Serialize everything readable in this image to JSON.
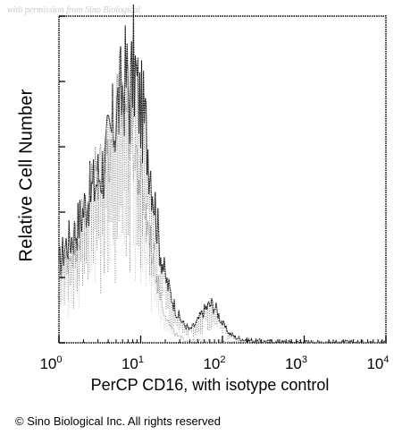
{
  "watermark": "with permission from Sino Biological",
  "copyright": "© Sino Biological Inc. All rights reserved",
  "chart_data": {
    "type": "area",
    "title": "",
    "xlabel": "PerCP CD16, with isotype control",
    "ylabel": "Relative Cell Number",
    "xscale": "log",
    "xlim": [
      1,
      10000
    ],
    "ylim": [
      0,
      100
    ],
    "grid": false,
    "x_ticks": [
      {
        "base": "10",
        "exp": "0",
        "value": 1
      },
      {
        "base": "10",
        "exp": "1",
        "value": 10
      },
      {
        "base": "10",
        "exp": "2",
        "value": 100
      },
      {
        "base": "10",
        "exp": "3",
        "value": 1000
      },
      {
        "base": "10",
        "exp": "4",
        "value": 10000
      }
    ],
    "series": [
      {
        "color": "#1a1a1a",
        "x": [
          1,
          1.2,
          1.5,
          1.8,
          2.2,
          2.6,
          3.1,
          3.6,
          4.2,
          5,
          5.8,
          6.6,
          7.4,
          8.2,
          9,
          10,
          11.5,
          13,
          15,
          17,
          20,
          24,
          28,
          33,
          40,
          48,
          56,
          65,
          75,
          85,
          100,
          120,
          150,
          200,
          300,
          500,
          1000,
          3000,
          10000
        ],
        "y": [
          24,
          30,
          33,
          38,
          44,
          47,
          52,
          55,
          62,
          70,
          76,
          82,
          75,
          86,
          78,
          72,
          66,
          56,
          42,
          30,
          20,
          14,
          9,
          6,
          4,
          6,
          9,
          11,
          12,
          10,
          6,
          3,
          1.5,
          0.8,
          0.4,
          0.2,
          0.1,
          0.05,
          0
        ]
      },
      {
        "color": "#7a7a7a",
        "x": [
          1,
          1.3,
          1.7,
          2.1,
          2.6,
          3.2,
          4,
          5,
          6,
          7,
          8,
          9,
          10,
          11.5,
          13,
          15,
          17,
          19,
          22,
          26,
          30,
          40,
          60,
          100,
          1000,
          10000
        ],
        "y": [
          22,
          26,
          33,
          42,
          50,
          55,
          60,
          68,
          75,
          72,
          63,
          56,
          48,
          40,
          32,
          24,
          16,
          11,
          6,
          3,
          1.5,
          0.6,
          0.2,
          0.05,
          0,
          0
        ]
      }
    ]
  }
}
